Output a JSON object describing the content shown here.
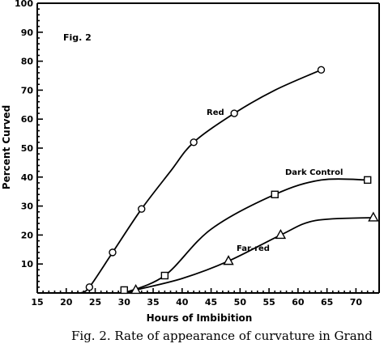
{
  "chart_data": {
    "type": "line",
    "title": "",
    "figure_label": "Fig. 2",
    "xlabel": "Hours of Imbibition",
    "ylabel": "Percent Curved",
    "xlim": [
      15,
      74
    ],
    "ylim": [
      0,
      100
    ],
    "xticks": [
      15,
      20,
      25,
      30,
      35,
      40,
      45,
      50,
      55,
      60,
      65,
      70
    ],
    "yticks": [
      10,
      20,
      30,
      40,
      50,
      60,
      70,
      80,
      90,
      100
    ],
    "grid": false,
    "series": [
      {
        "name": "Red",
        "marker": "circle",
        "points": [
          [
            24,
            2
          ],
          [
            28,
            14
          ],
          [
            33,
            29
          ],
          [
            42,
            52
          ],
          [
            49,
            62
          ],
          [
            64,
            77
          ]
        ],
        "curve": [
          [
            22.5,
            0
          ],
          [
            24,
            2
          ],
          [
            28,
            14
          ],
          [
            33,
            29
          ],
          [
            38,
            42
          ],
          [
            42,
            52
          ],
          [
            49,
            62
          ],
          [
            56,
            70
          ],
          [
            64,
            77
          ]
        ]
      },
      {
        "name": "Dark Control",
        "marker": "square",
        "points": [
          [
            30,
            1
          ],
          [
            37,
            6
          ],
          [
            56,
            34
          ],
          [
            72,
            39
          ]
        ],
        "curve": [
          [
            30,
            0
          ],
          [
            37,
            6
          ],
          [
            45,
            22
          ],
          [
            56,
            34
          ],
          [
            64,
            39
          ],
          [
            72,
            39
          ]
        ]
      },
      {
        "name": "Far-red",
        "marker": "triangle",
        "points": [
          [
            32,
            1
          ],
          [
            48,
            11
          ],
          [
            57,
            20
          ],
          [
            73,
            26
          ]
        ],
        "curve": [
          [
            31,
            0
          ],
          [
            32,
            1
          ],
          [
            40,
            5
          ],
          [
            48,
            11
          ],
          [
            57,
            20
          ],
          [
            63,
            25
          ],
          [
            73,
            26
          ]
        ]
      }
    ]
  },
  "caption": "Fig. 2.  Rate of appearance of curvature in Grand"
}
